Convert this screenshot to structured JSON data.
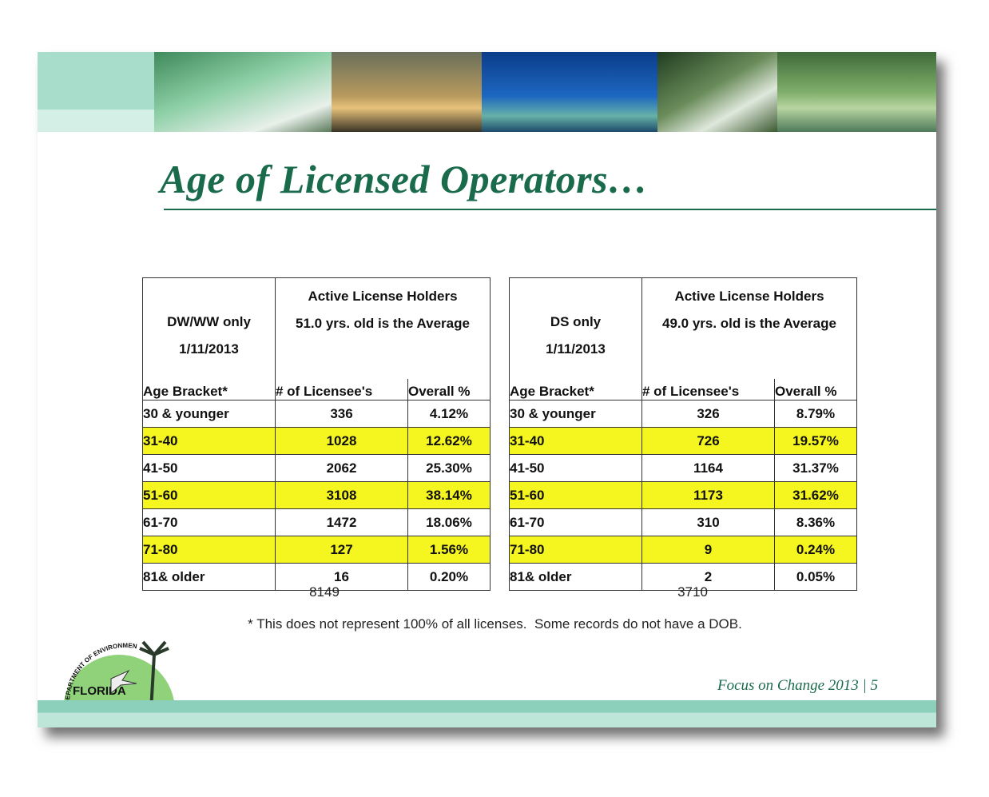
{
  "header": {
    "title": "Age of Licensed Operators…"
  },
  "tables": [
    {
      "group": [
        "DW/WW only",
        "1/11/2013"
      ],
      "heading": "Active License Holders",
      "average": "51.0 yrs. old is the Average",
      "columns": [
        "Age Bracket*",
        "# of Licensee's",
        "Overall %"
      ],
      "rows": [
        [
          "30 & younger",
          336,
          "4.12%"
        ],
        [
          "31-40",
          1028,
          "12.62%"
        ],
        [
          "41-50",
          2062,
          "25.30%"
        ],
        [
          "51-60",
          3108,
          "38.14%"
        ],
        [
          "61-70",
          1472,
          "18.06%"
        ],
        [
          "71-80",
          127,
          "1.56%"
        ],
        [
          "81& older",
          16,
          "0.20%"
        ]
      ],
      "total": 8149
    },
    {
      "group": [
        "DS only",
        "1/11/2013"
      ],
      "heading": "Active License Holders",
      "average": "49.0 yrs. old is the Average",
      "columns": [
        "Age Bracket*",
        "# of Licensee's",
        "Overall %"
      ],
      "rows": [
        [
          "30 & younger",
          326,
          "8.79%"
        ],
        [
          "31-40",
          726,
          "19.57%"
        ],
        [
          "41-50",
          1164,
          "31.37%"
        ],
        [
          "51-60",
          1173,
          "31.62%"
        ],
        [
          "61-70",
          310,
          "8.36%"
        ],
        [
          "71-80",
          9,
          "0.24%"
        ],
        [
          "81& older",
          2,
          "0.05%"
        ]
      ],
      "total": 3710
    }
  ],
  "footnote": "* This does not represent 100% of all licenses.  Some records do not have a DOB.",
  "logo": {
    "ring": "DEPARTMENT OF ENVIRONMENTAL PROTECTION",
    "name": "FLORIDA"
  },
  "footer": "Focus on Change 2013 | 5"
}
